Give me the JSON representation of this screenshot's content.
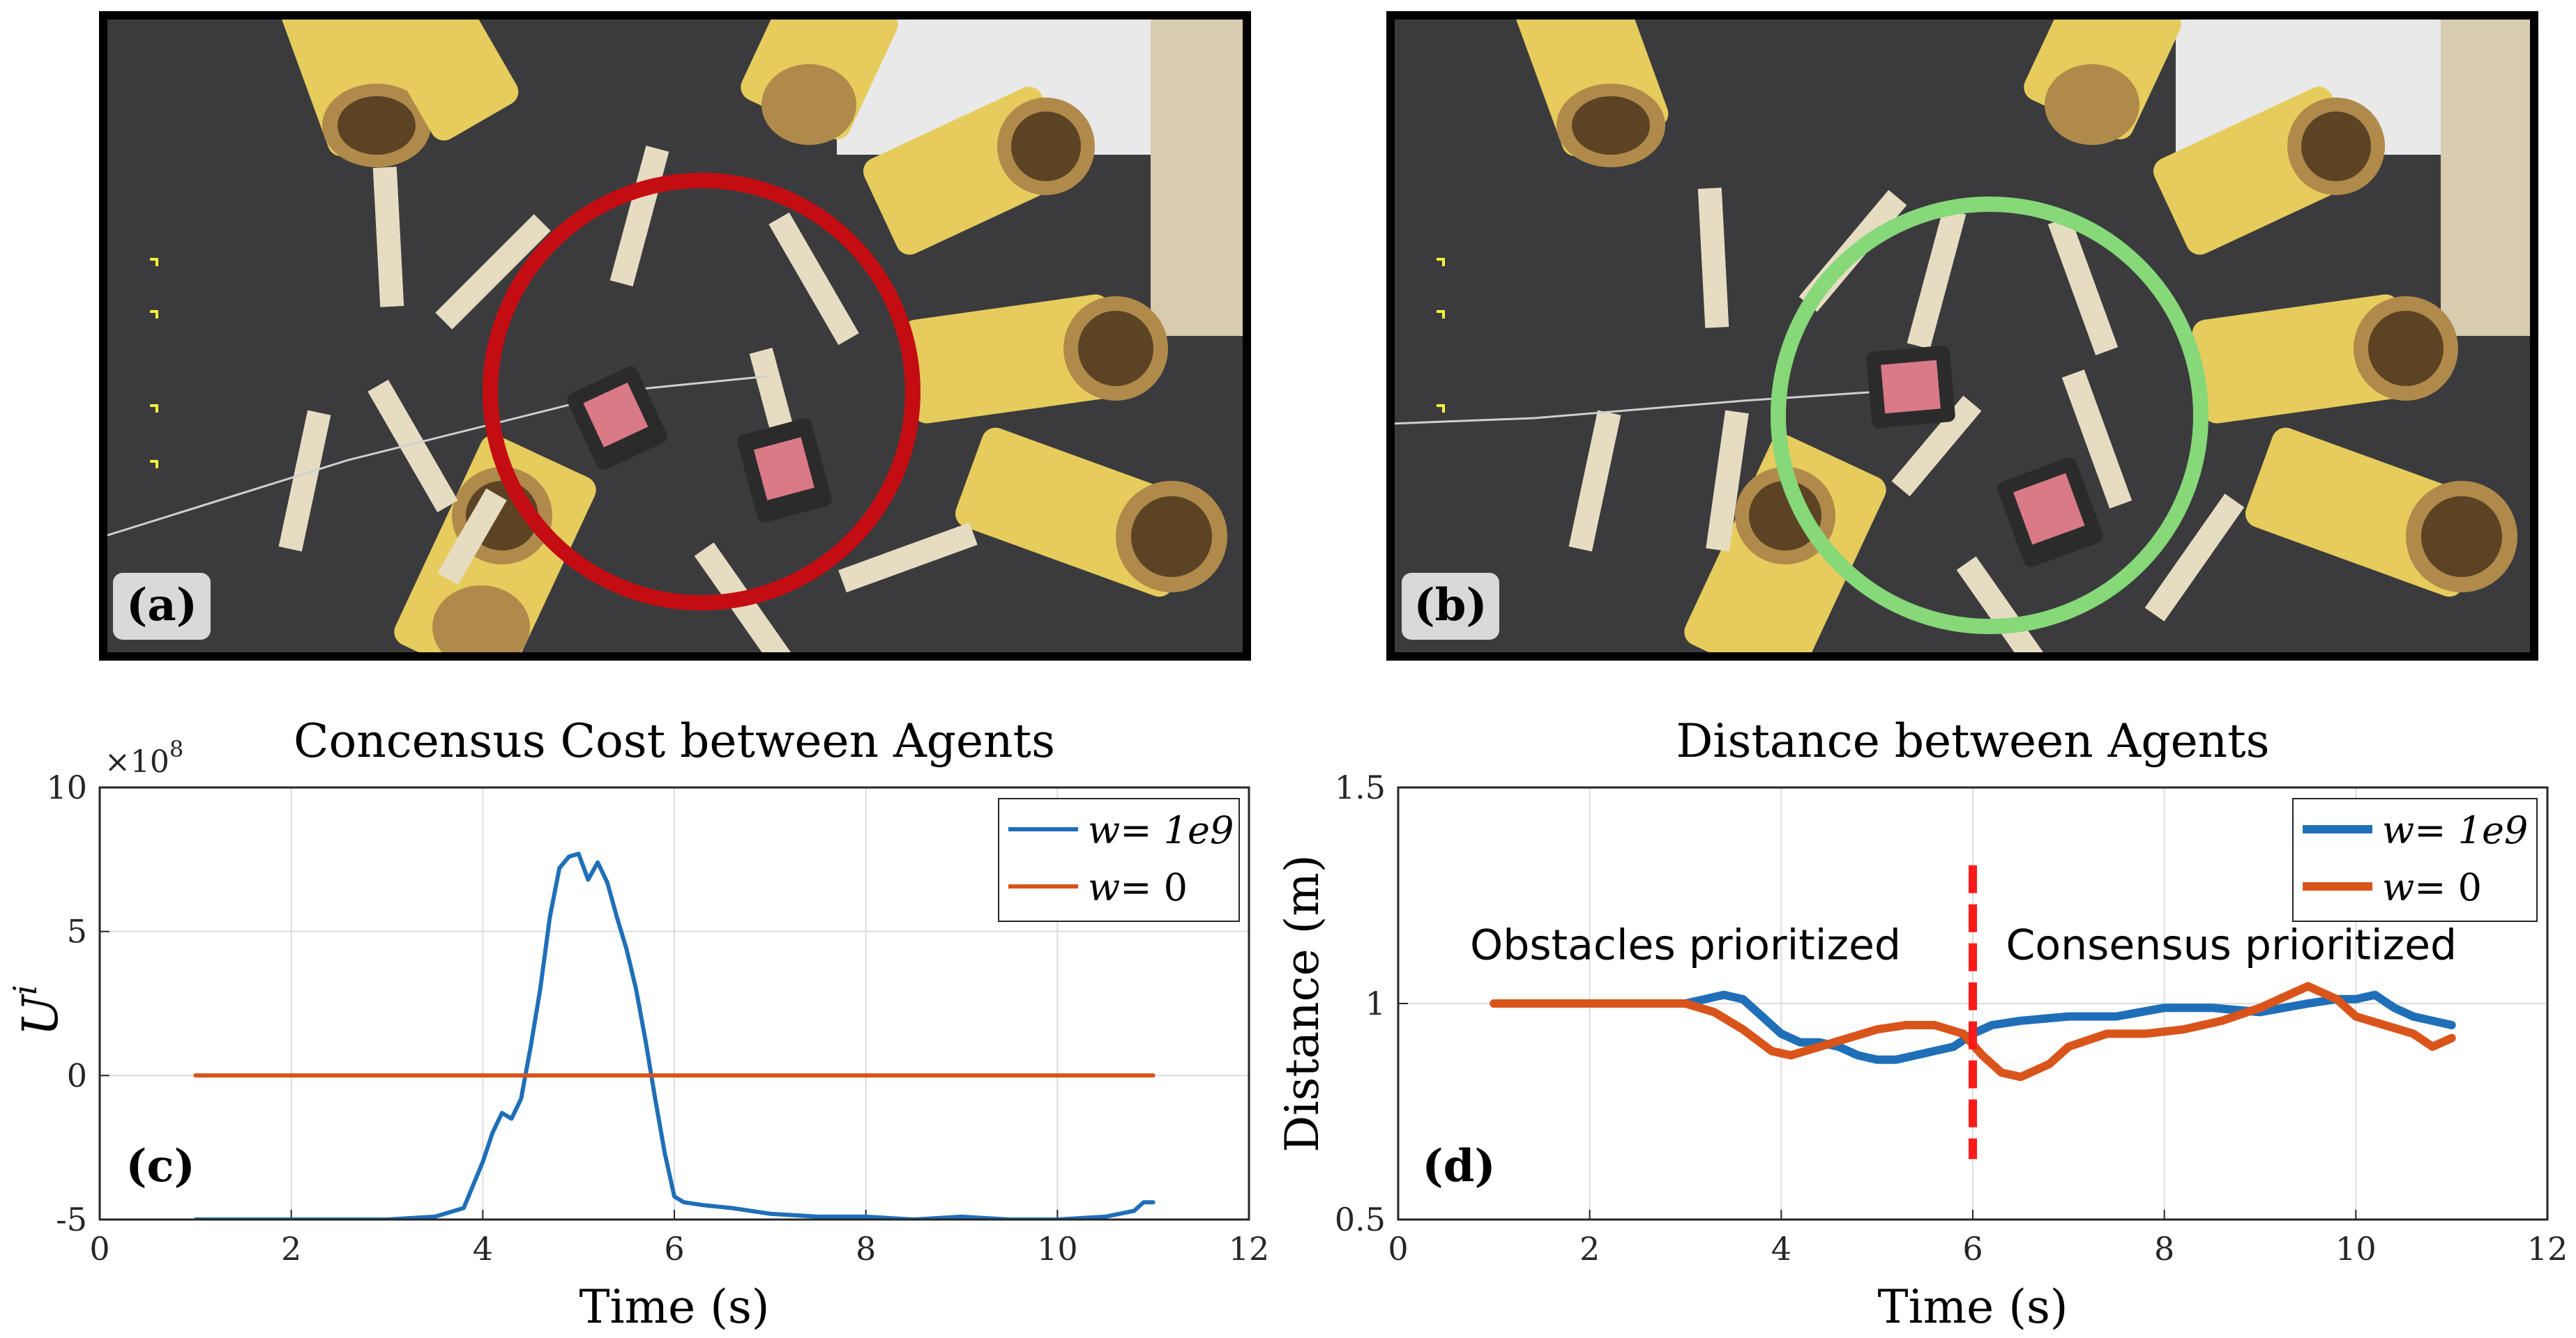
{
  "panels": {
    "a": {
      "label": "(a)"
    },
    "b": {
      "label": "(b)"
    },
    "c": {
      "label": "(c)"
    },
    "d": {
      "label": "(d)"
    }
  },
  "colors": {
    "blue": "#1f6fb8",
    "orange": "#d9541a",
    "red_circle": "#c40d12",
    "green_circle": "#86d879",
    "red_divider": "#ff1a1a",
    "tube": "#e8cf63",
    "floor": "#3a3a3a",
    "plank": "#e6dcc2"
  },
  "chart_data": [
    {
      "type": "line",
      "title": "Concensus Cost between Agents",
      "xlabel": "Time (s)",
      "ylabel": "U",
      "ylabel_superscript": "i",
      "y_multiplier": "×10",
      "y_multiplier_exp": "8",
      "xlim": [
        0,
        12
      ],
      "ylim": [
        -5,
        10
      ],
      "xticks": [
        0,
        2,
        4,
        6,
        8,
        10,
        12
      ],
      "yticks": [
        -5,
        0,
        5,
        10
      ],
      "xtick_labels": [
        "0",
        "2",
        "4",
        "6",
        "8",
        "10",
        "12"
      ],
      "ytick_labels": [
        "-5",
        "0",
        "5",
        "10"
      ],
      "grid": true,
      "legend_position": "top-right",
      "series": [
        {
          "name": "w = 1e9",
          "legend_w": "w",
          "legend_eq": "= ",
          "legend_val": "1e9",
          "color": "#1f6fb8",
          "x": [
            1.0,
            2.0,
            3.0,
            3.5,
            3.8,
            3.9,
            4.0,
            4.1,
            4.2,
            4.3,
            4.4,
            4.5,
            4.6,
            4.7,
            4.8,
            4.9,
            5.0,
            5.1,
            5.2,
            5.3,
            5.4,
            5.5,
            5.6,
            5.7,
            5.8,
            5.9,
            6.0,
            6.1,
            6.3,
            6.6,
            7.0,
            7.5,
            8.0,
            8.5,
            9.0,
            9.5,
            10.0,
            10.5,
            10.8,
            10.9,
            11.0
          ],
          "y": [
            -5.0,
            -5.0,
            -5.0,
            -4.9,
            -4.6,
            -3.8,
            -3.0,
            -2.0,
            -1.3,
            -1.5,
            -0.8,
            1.0,
            3.0,
            5.5,
            7.2,
            7.6,
            7.7,
            6.8,
            7.4,
            6.7,
            5.5,
            4.4,
            3.0,
            1.2,
            -0.8,
            -2.7,
            -4.2,
            -4.4,
            -4.5,
            -4.6,
            -4.8,
            -4.9,
            -4.9,
            -5.0,
            -4.9,
            -5.0,
            -5.0,
            -4.9,
            -4.7,
            -4.4,
            -4.4
          ]
        },
        {
          "name": "w = 0",
          "legend_w": "w",
          "legend_eq": "= ",
          "legend_val": "0",
          "color": "#d9541a",
          "x": [
            1.0,
            11.0
          ],
          "y": [
            0.0,
            0.0
          ]
        }
      ]
    },
    {
      "type": "line",
      "title": "Distance between Agents",
      "xlabel": "Time (s)",
      "ylabel": "Distance (m)",
      "xlim": [
        0,
        12
      ],
      "ylim": [
        0.5,
        1.5
      ],
      "xticks": [
        0,
        2,
        4,
        6,
        8,
        10,
        12
      ],
      "yticks": [
        0.5,
        1,
        1.5
      ],
      "xtick_labels": [
        "0",
        "2",
        "4",
        "6",
        "8",
        "10",
        "12"
      ],
      "ytick_labels": [
        "0.5",
        "1",
        "1.5"
      ],
      "grid": true,
      "legend_position": "top-right",
      "annotations": [
        {
          "text": "Obstacles prioritized",
          "x": 3.0,
          "y": 1.135
        },
        {
          "text": "Consensus prioritized",
          "x": 8.7,
          "y": 1.135
        }
      ],
      "vline": {
        "x": 6.0,
        "y_from": 0.64,
        "y_to": 1.32
      },
      "series": [
        {
          "name": "w = 1e9",
          "legend_w": "w",
          "legend_eq": "= ",
          "legend_val": "1e9",
          "color": "#1f6fb8",
          "x": [
            1.0,
            2.0,
            3.0,
            3.2,
            3.4,
            3.6,
            3.8,
            4.0,
            4.2,
            4.4,
            4.6,
            4.8,
            5.0,
            5.2,
            5.4,
            5.6,
            5.8,
            6.0,
            6.2,
            6.5,
            7.0,
            7.5,
            8.0,
            8.5,
            9.0,
            9.5,
            9.8,
            10.0,
            10.2,
            10.4,
            10.6,
            10.8,
            11.0
          ],
          "y": [
            1.0,
            1.0,
            1.0,
            1.01,
            1.02,
            1.01,
            0.97,
            0.93,
            0.91,
            0.91,
            0.9,
            0.88,
            0.87,
            0.87,
            0.88,
            0.89,
            0.9,
            0.93,
            0.95,
            0.96,
            0.97,
            0.97,
            0.99,
            0.99,
            0.98,
            1.0,
            1.01,
            1.01,
            1.02,
            0.99,
            0.97,
            0.96,
            0.95
          ]
        },
        {
          "name": "w = 0",
          "legend_w": "w",
          "legend_eq": "= ",
          "legend_val": "0",
          "color": "#d9541a",
          "x": [
            1.0,
            2.0,
            3.0,
            3.3,
            3.6,
            3.9,
            4.1,
            4.4,
            4.7,
            5.0,
            5.3,
            5.6,
            5.9,
            6.1,
            6.3,
            6.5,
            6.8,
            7.0,
            7.4,
            7.8,
            8.2,
            8.6,
            9.0,
            9.3,
            9.5,
            9.8,
            10.0,
            10.3,
            10.6,
            10.8,
            11.0
          ],
          "y": [
            1.0,
            1.0,
            1.0,
            0.98,
            0.94,
            0.89,
            0.88,
            0.9,
            0.92,
            0.94,
            0.95,
            0.95,
            0.93,
            0.88,
            0.84,
            0.83,
            0.86,
            0.9,
            0.93,
            0.93,
            0.94,
            0.96,
            0.99,
            1.02,
            1.04,
            1.01,
            0.97,
            0.95,
            0.93,
            0.9,
            0.92
          ]
        }
      ]
    }
  ]
}
